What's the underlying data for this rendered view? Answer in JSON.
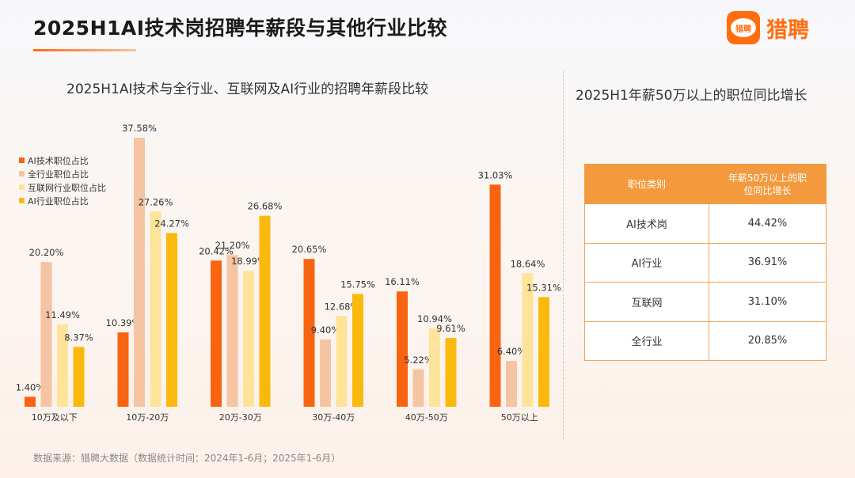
{
  "title": "2025H1AI技术岗招聘年薪段与其他行业比较",
  "logo": {
    "text": "猎聘",
    "icon_text": "猎聘"
  },
  "chart_data": {
    "type": "bar",
    "title": "2025H1AI技术与全行业、互联网及AI行业的招聘年薪段比较",
    "categories": [
      "10万及以下",
      "10万-20万",
      "20万-30万",
      "30万-40万",
      "40万-50万",
      "50万以上"
    ],
    "series": [
      {
        "name": "AI技术职位占比",
        "color": "#f8640f",
        "values": [
          1.4,
          10.39,
          20.42,
          20.65,
          16.11,
          31.03
        ]
      },
      {
        "name": "全行业职位占比",
        "color": "#f5c4a2",
        "values": [
          20.2,
          37.58,
          21.2,
          9.4,
          5.22,
          6.4
        ]
      },
      {
        "name": "互联网行业职位占比",
        "color": "#fde49a",
        "values": [
          11.49,
          27.26,
          18.99,
          12.68,
          10.94,
          18.64
        ]
      },
      {
        "name": "AI行业职位占比",
        "color": "#fbb90d",
        "values": [
          8.37,
          24.27,
          26.68,
          15.75,
          9.61,
          15.31
        ]
      }
    ],
    "ylim": [
      0,
      40
    ],
    "legend": "top-left",
    "grid": false
  },
  "table": {
    "title": "2025H1年薪50万以上的职位同比增长",
    "headers": [
      "职位类别",
      "年薪50万以上的职位同比增长"
    ],
    "rows": [
      [
        "AI技术岗",
        "44.42%"
      ],
      [
        "AI行业",
        "36.91%"
      ],
      [
        "互联网",
        "31.10%"
      ],
      [
        "全行业",
        "20.85%"
      ]
    ]
  },
  "footer": "数据来源：猎聘大数据（数据统计时间：2024年1-6月；2025年1-6月）"
}
